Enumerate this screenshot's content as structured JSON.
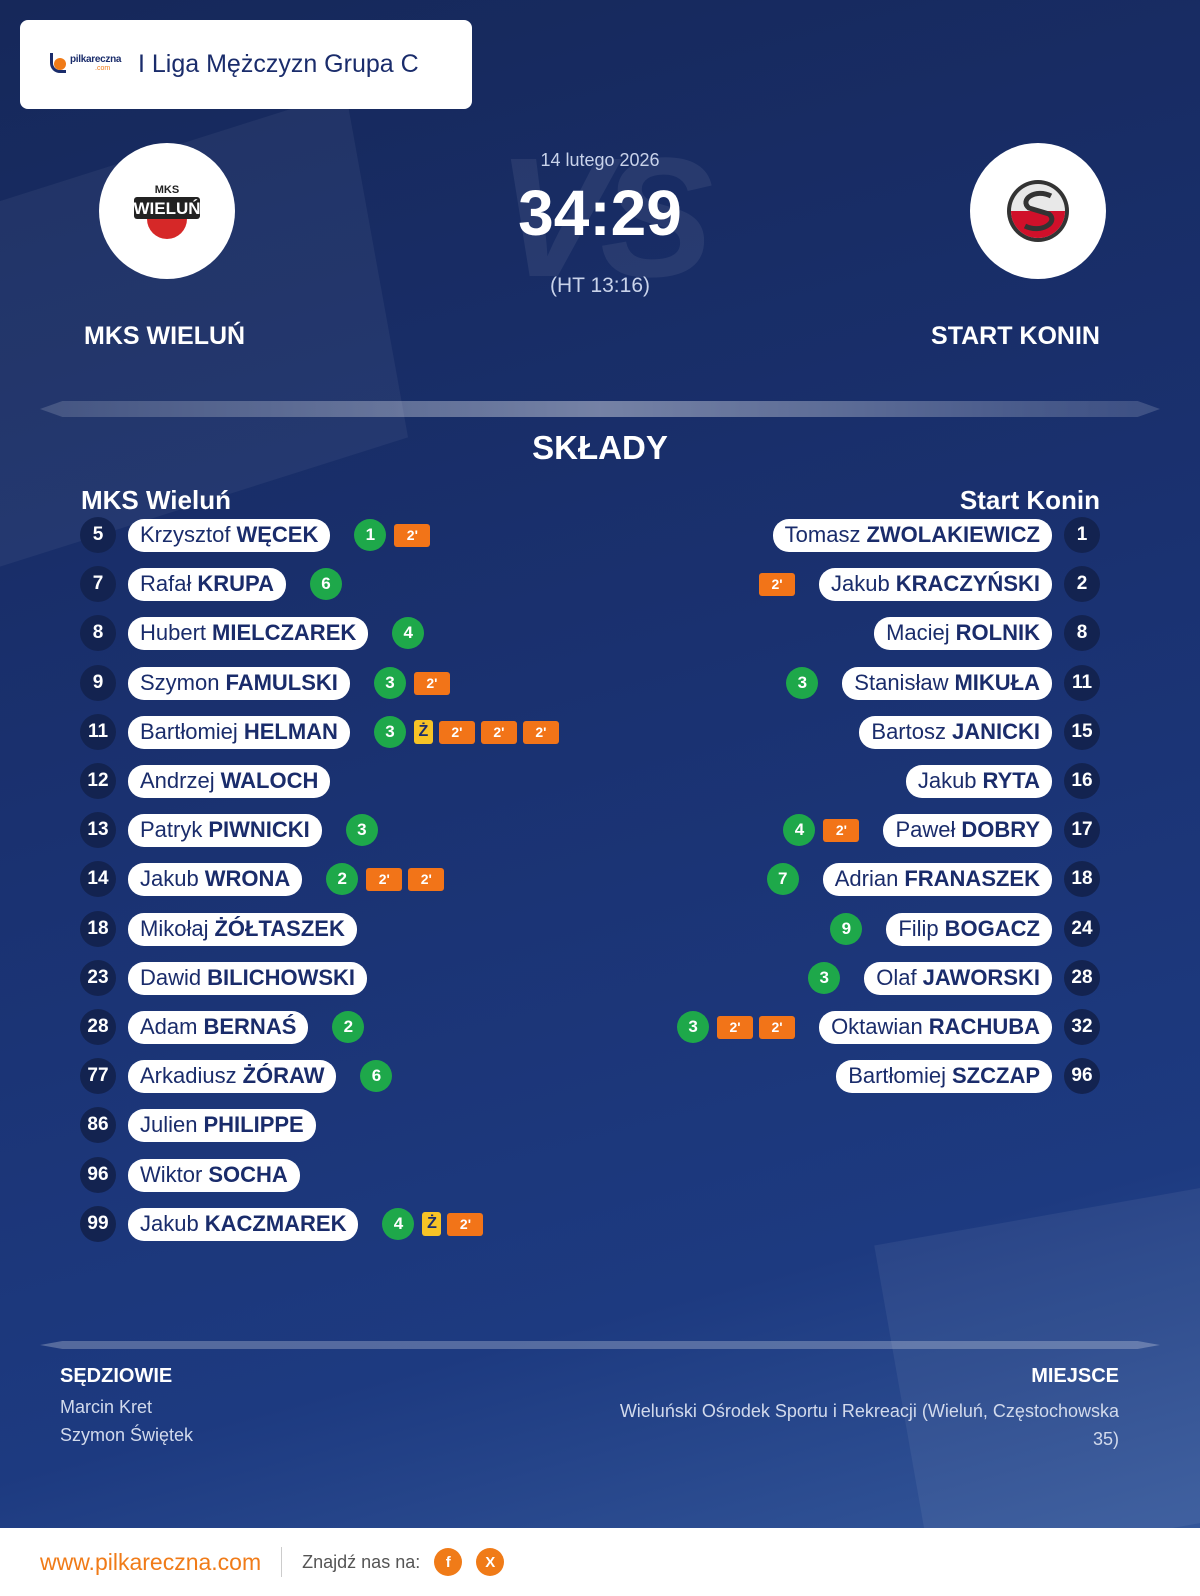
{
  "league": {
    "logo_text_main": "pilkareczna",
    "logo_text_sub": ".com",
    "name": "I Liga Mężczyzn Grupa C"
  },
  "match": {
    "date": "14 lutego 2026",
    "score": "34:29",
    "halftime": "(HT 13:16)",
    "vs_watermark": "VS"
  },
  "home": {
    "name": "MKS WIELUŃ",
    "logo_text_top": "MKS",
    "logo_text_main": "WIELUŃ",
    "lineup_title": "MKS Wieluń",
    "players": [
      {
        "number": "5",
        "first": "Krzysztof",
        "last": "WĘCEK",
        "goals": "1",
        "yellow": false,
        "suspensions": [
          "2'"
        ]
      },
      {
        "number": "7",
        "first": "Rafał",
        "last": "KRUPA",
        "goals": "6",
        "yellow": false,
        "suspensions": []
      },
      {
        "number": "8",
        "first": "Hubert",
        "last": "MIELCZAREK",
        "goals": "4",
        "yellow": false,
        "suspensions": []
      },
      {
        "number": "9",
        "first": "Szymon",
        "last": "FAMULSKI",
        "goals": "3",
        "yellow": false,
        "suspensions": [
          "2'"
        ]
      },
      {
        "number": "11",
        "first": "Bartłomiej",
        "last": "HELMAN",
        "goals": "3",
        "yellow": true,
        "suspensions": [
          "2'",
          "2'",
          "2'"
        ]
      },
      {
        "number": "12",
        "first": "Andrzej",
        "last": "WALOCH",
        "goals": "",
        "yellow": false,
        "suspensions": []
      },
      {
        "number": "13",
        "first": "Patryk",
        "last": "PIWNICKI",
        "goals": "3",
        "yellow": false,
        "suspensions": []
      },
      {
        "number": "14",
        "first": "Jakub",
        "last": "WRONA",
        "goals": "2",
        "yellow": false,
        "suspensions": [
          "2'",
          "2'"
        ]
      },
      {
        "number": "18",
        "first": "Mikołaj",
        "last": "ŻÓŁTASZEK",
        "goals": "",
        "yellow": false,
        "suspensions": []
      },
      {
        "number": "23",
        "first": "Dawid",
        "last": "BILICHOWSKI",
        "goals": "",
        "yellow": false,
        "suspensions": []
      },
      {
        "number": "28",
        "first": "Adam",
        "last": "BERNAŚ",
        "goals": "2",
        "yellow": false,
        "suspensions": []
      },
      {
        "number": "77",
        "first": "Arkadiusz",
        "last": "ŻÓRAW",
        "goals": "6",
        "yellow": false,
        "suspensions": []
      },
      {
        "number": "86",
        "first": "Julien",
        "last": "PHILIPPE",
        "goals": "",
        "yellow": false,
        "suspensions": []
      },
      {
        "number": "96",
        "first": "Wiktor",
        "last": "SOCHA",
        "goals": "",
        "yellow": false,
        "suspensions": []
      },
      {
        "number": "99",
        "first": "Jakub",
        "last": "KACZMAREK",
        "goals": "4",
        "yellow": true,
        "suspensions": [
          "2'"
        ]
      }
    ]
  },
  "away": {
    "name": "START KONIN",
    "lineup_title": "Start Konin",
    "players": [
      {
        "number": "1",
        "first": "Tomasz",
        "last": "ZWOLAKIEWICZ",
        "goals": "",
        "yellow": false,
        "suspensions": []
      },
      {
        "number": "2",
        "first": "Jakub",
        "last": "KRACZYŃSKI",
        "goals": "",
        "yellow": false,
        "suspensions": [
          "2'"
        ]
      },
      {
        "number": "8",
        "first": "Maciej",
        "last": "ROLNIK",
        "goals": "",
        "yellow": false,
        "suspensions": []
      },
      {
        "number": "11",
        "first": "Stanisław",
        "last": "MIKUŁA",
        "goals": "3",
        "yellow": false,
        "suspensions": []
      },
      {
        "number": "15",
        "first": "Bartosz",
        "last": "JANICKI",
        "goals": "",
        "yellow": false,
        "suspensions": []
      },
      {
        "number": "16",
        "first": "Jakub",
        "last": "RYTA",
        "goals": "",
        "yellow": false,
        "suspensions": []
      },
      {
        "number": "17",
        "first": "Paweł",
        "last": "DOBRY",
        "goals": "4",
        "yellow": false,
        "suspensions": [
          "2'"
        ]
      },
      {
        "number": "18",
        "first": "Adrian",
        "last": "FRANASZEK",
        "goals": "7",
        "yellow": false,
        "suspensions": []
      },
      {
        "number": "24",
        "first": "Filip",
        "last": "BOGACZ",
        "goals": "9",
        "yellow": false,
        "suspensions": []
      },
      {
        "number": "28",
        "first": "Olaf",
        "last": "JAWORSKI",
        "goals": "3",
        "yellow": false,
        "suspensions": []
      },
      {
        "number": "32",
        "first": "Oktawian",
        "last": "RACHUBA",
        "goals": "3",
        "yellow": false,
        "suspensions": [
          "2'",
          "2'"
        ]
      },
      {
        "number": "96",
        "first": "Bartłomiej",
        "last": "SZCZAP",
        "goals": "",
        "yellow": false,
        "suspensions": []
      }
    ]
  },
  "yellow_label": "Ż",
  "section_title": "SKŁADY",
  "referees": {
    "title": "SĘDZIOWIE",
    "names": [
      "Marcin Kret",
      "Szymon Świętek"
    ]
  },
  "venue": {
    "title": "MIEJSCE",
    "text": "Wieluński Ośrodek Sportu i Rekreacji (Wieluń, Częstochowska 35)"
  },
  "footer": {
    "site": "www.pilkareczna.com",
    "find_us": "Znajdź nas na:",
    "social": [
      {
        "icon": "facebook-icon",
        "glyph": "f"
      },
      {
        "icon": "x-icon",
        "glyph": "X"
      }
    ]
  },
  "colors": {
    "background_top": "#16285a",
    "background_bottom": "#34579a",
    "goal_badge": "#1ea84a",
    "suspension_badge": "#f27418",
    "yellow_card": "#f7c326",
    "brand_orange": "#f07b18",
    "text_navy": "#1a2c6b"
  }
}
